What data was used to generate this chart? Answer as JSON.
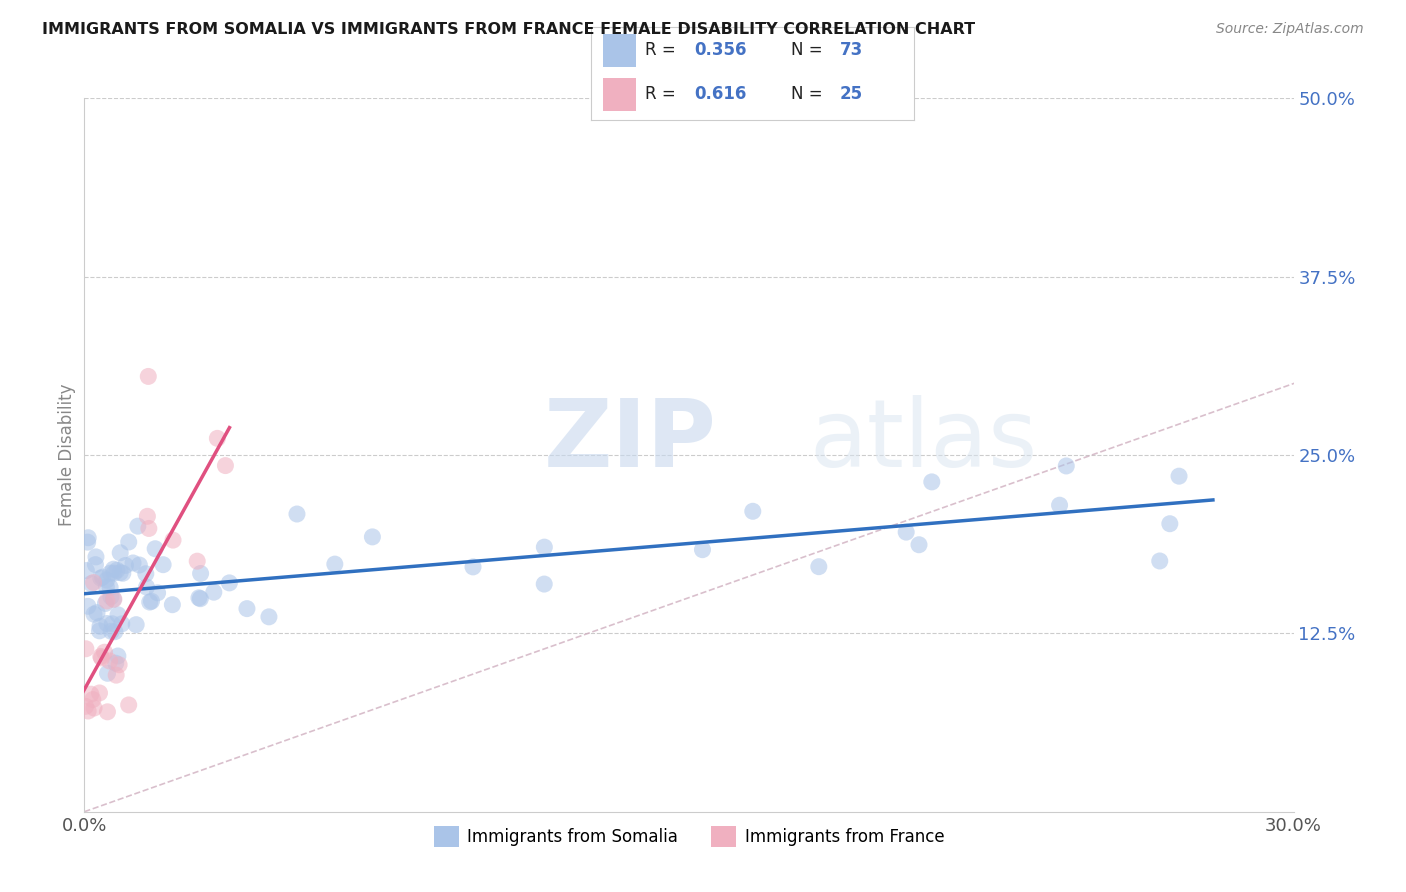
{
  "title": "IMMIGRANTS FROM SOMALIA VS IMMIGRANTS FROM FRANCE FEMALE DISABILITY CORRELATION CHART",
  "source": "Source: ZipAtlas.com",
  "ylabel": "Female Disability",
  "xlim": [
    0.0,
    0.3
  ],
  "ylim": [
    0.0,
    0.5
  ],
  "ytick_values": [
    0.125,
    0.25,
    0.375,
    0.5
  ],
  "ytick_labels": [
    "12.5%",
    "25.0%",
    "37.5%",
    "50.0%"
  ],
  "xtick_values": [
    0.0,
    0.3
  ],
  "xtick_labels": [
    "0.0%",
    "30.0%"
  ],
  "somalia": {
    "R": 0.356,
    "N": 73,
    "color": "#aac4e8",
    "line_color": "#3070c0",
    "label": "Immigrants from Somalia"
  },
  "france": {
    "R": 0.616,
    "N": 25,
    "color": "#f0b0c0",
    "line_color": "#e05080",
    "label": "Immigrants from France"
  },
  "watermark_text": "ZIP",
  "watermark_text2": "atlas",
  "background_color": "#ffffff",
  "title_color": "#1a1a1a",
  "source_color": "#888888",
  "ytick_color": "#4472c4",
  "xtick_color": "#555555",
  "grid_color": "#cccccc",
  "diagonal_color": "#d0b0c0"
}
